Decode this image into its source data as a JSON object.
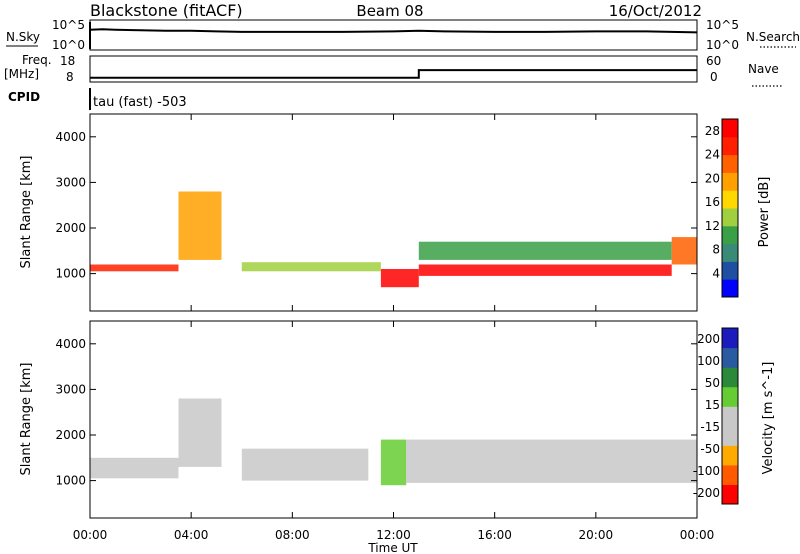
{
  "header": {
    "title_left": "Blackstone (fitACF)",
    "title_center": "Beam 08",
    "title_right": "16/Oct/2012"
  },
  "noise_panel": {
    "left_label": "N.Sky",
    "right_label": "N.Search",
    "ticks_left": [
      "10^5",
      "10^0"
    ],
    "ticks_right": [
      "10^5",
      "10^0"
    ]
  },
  "freq_panel": {
    "left_label_1": "Freq.",
    "left_label_2": "[MHz]",
    "right_label": "Nave",
    "ticks_left": [
      "18",
      "8"
    ],
    "ticks_right": [
      "60",
      "0"
    ]
  },
  "cpid_panel": {
    "left_label": "CPID",
    "mode_text": "tau (fast) -503"
  },
  "x_axis": {
    "title": "Time UT",
    "ticks": [
      "00:00",
      "04:00",
      "08:00",
      "12:00",
      "16:00",
      "20:00",
      "00:00"
    ]
  },
  "colors": {
    "power": [
      "#0000ff",
      "#1f4fa0",
      "#3a8a78",
      "#3aa048",
      "#a0d040",
      "#ffd800",
      "#ffa000",
      "#ff6000",
      "#ff2000",
      "#ff0000"
    ],
    "velocity": [
      "#ff0000",
      "#ff5a00",
      "#ffaa00",
      "#c8c8c8",
      "#c8c8c8",
      "#66cc33",
      "#2a8a3a",
      "#2a5aa0",
      "#1c1cbd"
    ]
  },
  "chart_data": [
    {
      "type": "line",
      "name": "noise-sky",
      "x": [
        0,
        0.5,
        1,
        2,
        3,
        4,
        5,
        6,
        8,
        10,
        12,
        13,
        14,
        16,
        18,
        20,
        22,
        23,
        24
      ],
      "values": [
        3.5,
        3.6,
        3.5,
        3.4,
        3.3,
        3.3,
        3.2,
        3.1,
        3.1,
        3.1,
        3.2,
        3.3,
        3.2,
        3.1,
        3.1,
        3.2,
        3.2,
        3.1,
        3.0
      ],
      "xlim": [
        0,
        24
      ],
      "ylabel": "N.Sky"
    },
    {
      "type": "line",
      "name": "frequency",
      "x": [
        0,
        13,
        13,
        24
      ],
      "values": [
        9,
        9,
        12.5,
        12.5
      ],
      "ylim": [
        8,
        18
      ],
      "xlim": [
        0,
        24
      ],
      "ylabel": "Freq. [MHz]"
    },
    {
      "type": "heatmap",
      "title": "",
      "xlabel": "Time UT",
      "ylabel": "Slant Range [km]",
      "x_ticks": [
        "00:00",
        "04:00",
        "08:00",
        "12:00",
        "16:00",
        "20:00",
        "00:00"
      ],
      "xlim": [
        0,
        24
      ],
      "y_ticks": [
        1000,
        2000,
        3000,
        4000
      ],
      "ylim": [
        180,
        4500
      ],
      "colorbar": {
        "label": "Power [dB]",
        "ticks": [
          4,
          8,
          12,
          16,
          20,
          24,
          28
        ],
        "range": [
          0,
          30
        ]
      },
      "bands": [
        {
          "t_start": 0,
          "t_end": 3.5,
          "range_low": 1050,
          "range_high": 1200,
          "value": 26
        },
        {
          "t_start": 3.5,
          "t_end": 5.2,
          "range_low": 1300,
          "range_high": 2800,
          "value": 20
        },
        {
          "t_start": 6.0,
          "t_end": 11.5,
          "range_low": 1050,
          "range_high": 1250,
          "value": 14
        },
        {
          "t_start": 11.5,
          "t_end": 13.0,
          "range_low": 700,
          "range_high": 1100,
          "value": 27
        },
        {
          "t_start": 13.0,
          "t_end": 23.0,
          "range_low": 950,
          "range_high": 1200,
          "value": 27
        },
        {
          "t_start": 13.0,
          "t_end": 23.0,
          "range_low": 1300,
          "range_high": 1700,
          "value": 10
        },
        {
          "t_start": 23.0,
          "t_end": 24.0,
          "range_low": 1200,
          "range_high": 1800,
          "value": 22
        }
      ]
    },
    {
      "type": "heatmap",
      "title": "",
      "xlabel": "Time UT",
      "ylabel": "Slant Range [km]",
      "x_ticks": [
        "00:00",
        "04:00",
        "08:00",
        "12:00",
        "16:00",
        "20:00",
        "00:00"
      ],
      "xlim": [
        0,
        24
      ],
      "y_ticks": [
        1000,
        2000,
        3000,
        4000
      ],
      "ylim": [
        180,
        4500
      ],
      "colorbar": {
        "label": "Velocity [m s^-1]",
        "ticks": [
          200,
          100,
          50,
          15,
          -15,
          -50,
          -100,
          -200
        ],
        "range": [
          -250,
          250
        ]
      },
      "bands": [
        {
          "t_start": 0,
          "t_end": 3.5,
          "range_low": 1050,
          "range_high": 1500,
          "value": 0
        },
        {
          "t_start": 3.5,
          "t_end": 5.2,
          "range_low": 1300,
          "range_high": 2800,
          "value": 0
        },
        {
          "t_start": 6.0,
          "t_end": 11.0,
          "range_low": 1000,
          "range_high": 1700,
          "value": -70
        },
        {
          "t_start": 11.5,
          "t_end": 12.5,
          "range_low": 900,
          "range_high": 1900,
          "value": 30
        },
        {
          "t_start": 12.5,
          "t_end": 24.0,
          "range_low": 950,
          "range_high": 1900,
          "value": 0
        }
      ]
    }
  ]
}
